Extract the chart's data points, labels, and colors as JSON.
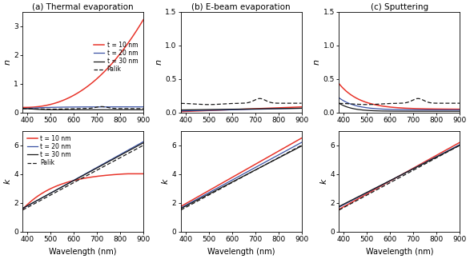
{
  "wavelength_range": [
    380,
    900
  ],
  "titles": [
    "(a) Thermal evaporation",
    "(b) E-beam evaporation",
    "(c) Sputtering"
  ],
  "legend_labels": [
    "t = 10 nm",
    "t = 20 nm",
    "t = 30 nm",
    "Palik"
  ],
  "colors": {
    "t10": "#e8342a",
    "t20": "#3a52a4",
    "t30": "#1a1a1a",
    "palik": "#1a1a1a"
  },
  "ylabel_n": "n",
  "ylabel_k": "k",
  "xlabel": "Wavelength (nm)",
  "n_ylim_thermal": [
    0,
    3.5
  ],
  "n_ylim_ebeam": [
    0,
    1.5
  ],
  "n_ylim_sputter": [
    0,
    1.5
  ],
  "k_ylim": [
    0,
    7
  ],
  "bg_color": "#f0f0f0"
}
